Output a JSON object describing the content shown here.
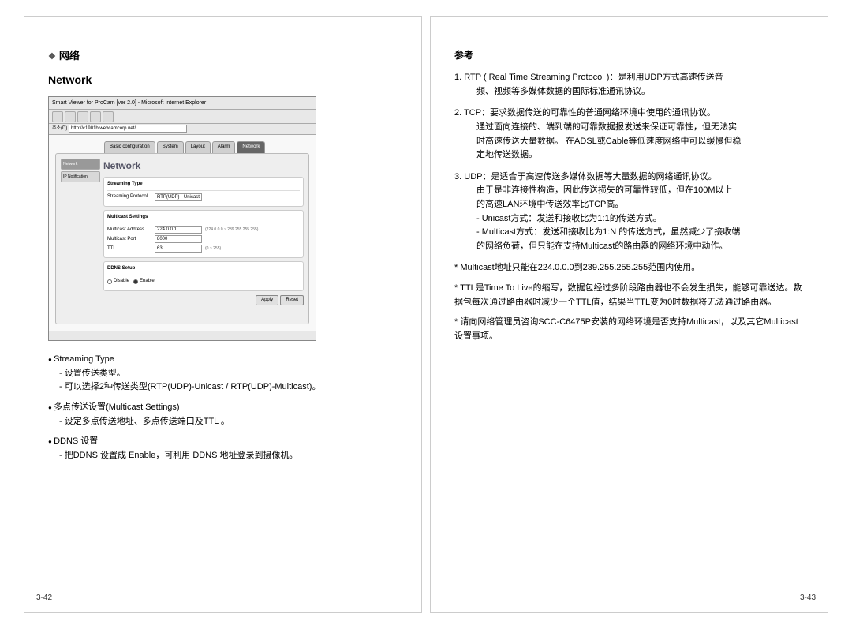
{
  "left_page": {
    "number": "3-42",
    "title_cn": "网络",
    "title_en": "Network",
    "screenshot": {
      "window_title": "Smart Viewer for ProCam [ver 2.0] - Microsoft Internet Explorer",
      "address_label": "주소(D)",
      "address": "http://c1901b.webcamcorp.net/",
      "tabs": [
        "Basic configuration",
        "System",
        "Layout",
        "Alarm",
        "Network"
      ],
      "active_tab": 4,
      "panel_title": "Network",
      "sidebar": [
        "Network",
        "IP Notification"
      ],
      "sidebar_sel": 0,
      "section1": {
        "title": "Streaming Type",
        "label": "Streaming Protocol",
        "value": "RTP(UDP) - Unicast"
      },
      "section2": {
        "title": "Multicast Settings",
        "rows": [
          {
            "label": "Multicast Address",
            "value": "224.0.0.1",
            "hint": "(224.0.0.0 ~ 239.255.255.255)"
          },
          {
            "label": "Multicast Port",
            "value": "8000",
            "hint": ""
          },
          {
            "label": "TTL",
            "value": "63",
            "hint": "(0 ~ 255)"
          }
        ]
      },
      "section3": {
        "title": "DDNS Setup",
        "options": [
          "Disable",
          "Enable"
        ],
        "selected": 1
      },
      "buttons": [
        "Apply",
        "Reset"
      ]
    },
    "bullets": [
      {
        "main": "Streaming Type",
        "subs": [
          "设置传送类型。",
          "可以选择2种传送类型(RTP(UDP)-Unicast / RTP(UDP)-Multicast)。"
        ]
      },
      {
        "main": "多点传送设置(Multicast Settings)",
        "subs": [
          "设定多点传送地址、多点传送端口及TTL 。"
        ]
      },
      {
        "main": "DDNS 设置",
        "subs": [
          "把DDNS 设置成 Enable，可利用 DDNS 地址登录到摄像机。"
        ]
      }
    ]
  },
  "right_page": {
    "number": "3-43",
    "ref_title": "参考",
    "num_items": [
      {
        "n": "1.",
        "first": "RTP ( Real Time Streaming Protocol )：是利用UDP方式高速传送音",
        "cont": [
          "频、视频等多媒体数据的国际标准通讯协议。"
        ]
      },
      {
        "n": "2.",
        "first": "TCP：要求数据传送的可靠性的普通网络环境中使用的通讯协议。",
        "cont": [
          "通过面向连接的、端到端的可靠数据报发送来保证可靠性，但无法实",
          "时高速传送大量数据。 在ADSL或Cable等低速度网络中可以缓慢但稳",
          "定地传送数据。"
        ]
      },
      {
        "n": "3.",
        "first": "UDP：是适合于高速传送多媒体数据等大量数据的网络通讯协议。",
        "cont": [
          "由于是非连接性构造，因此传送损失的可靠性较低，但在100M以上",
          "的高速LAN环境中传送效率比TCP高。",
          "- Unicast方式：发送和接收比为1:1的传送方式。",
          "- Multicast方式：发送和接收比为1:N 的传送方式，虽然减少了接收端",
          "的网络负荷，但只能在支持Multicast的路由器的网络环境中动作。"
        ]
      }
    ],
    "star_items": [
      "Multicast地址只能在224.0.0.0到239.255.255.255范围内使用。",
      "TTL是Time To Live的缩写，数据包经过多阶段路由器也不会发生损失，能够可靠送达。数据包每次通过路由器时减少一个TTL值，结果当TTL变为0时数据将无法通过路由器。",
      "请向网络管理员咨询SCC-C6475P安装的网络环境是否支持Multicast，以及其它Multicast设置事项。"
    ]
  }
}
